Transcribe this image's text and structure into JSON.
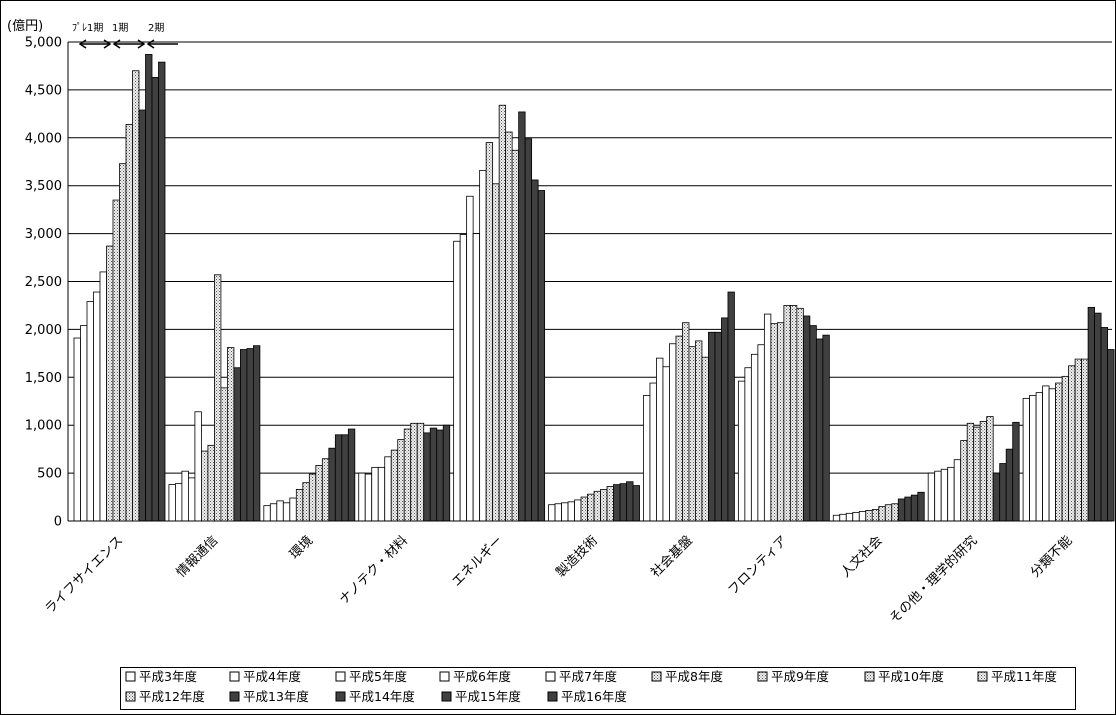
{
  "chart_data": {
    "type": "bar",
    "unit_label": "(億円)",
    "categories": [
      "ライフサイエンス",
      "情報通信",
      "環境",
      "ナノテク・材料",
      "エネルギー",
      "製造技術",
      "社会基盤",
      "フロンティア",
      "人文社会",
      "その他・理学的研究",
      "分類不能"
    ],
    "series": [
      {
        "name": "平成3年度",
        "pattern": "white",
        "values": [
          1910,
          380,
          160,
          500,
          2920,
          170,
          1310,
          1460,
          60,
          500,
          1280
        ]
      },
      {
        "name": "平成4年度",
        "pattern": "white",
        "values": [
          2040,
          390,
          180,
          490,
          2990,
          180,
          1440,
          1600,
          70,
          520,
          1310
        ]
      },
      {
        "name": "平成5年度",
        "pattern": "white",
        "values": [
          2290,
          520,
          210,
          560,
          3390,
          190,
          1700,
          1740,
          80,
          540,
          1340
        ]
      },
      {
        "name": "平成6年度",
        "pattern": "white",
        "values": [
          2390,
          450,
          190,
          560,
          3000,
          200,
          1610,
          1840,
          90,
          560,
          1410
        ]
      },
      {
        "name": "平成7年度",
        "pattern": "white",
        "values": [
          2600,
          1140,
          240,
          670,
          3660,
          220,
          1850,
          2160,
          100,
          640,
          1380
        ]
      },
      {
        "name": "平成8年度",
        "pattern": "dots",
        "values": [
          2870,
          730,
          330,
          740,
          3950,
          250,
          1930,
          2060,
          110,
          840,
          1440
        ]
      },
      {
        "name": "平成9年度",
        "pattern": "dots",
        "values": [
          3350,
          790,
          400,
          850,
          3520,
          280,
          2070,
          2070,
          120,
          1020,
          1510
        ]
      },
      {
        "name": "平成10年度",
        "pattern": "dots",
        "values": [
          3730,
          2570,
          490,
          960,
          4340,
          310,
          1820,
          2250,
          150,
          980,
          1620
        ]
      },
      {
        "name": "平成11年度",
        "pattern": "dots",
        "values": [
          4140,
          1390,
          580,
          1020,
          4060,
          330,
          1880,
          2250,
          170,
          1040,
          1690
        ]
      },
      {
        "name": "平成12年度",
        "pattern": "dots",
        "values": [
          4700,
          1810,
          650,
          1020,
          3870,
          360,
          1710,
          2220,
          180,
          1090,
          1690
        ]
      },
      {
        "name": "平成13年度",
        "pattern": "dark",
        "values": [
          4290,
          1600,
          760,
          920,
          4270,
          380,
          1970,
          2140,
          230,
          500,
          2230
        ]
      },
      {
        "name": "平成14年度",
        "pattern": "dark",
        "values": [
          4870,
          1790,
          900,
          970,
          3990,
          390,
          1970,
          2040,
          250,
          600,
          2170
        ]
      },
      {
        "name": "平成15年度",
        "pattern": "dark",
        "values": [
          4630,
          1800,
          900,
          950,
          3560,
          410,
          2120,
          1900,
          270,
          750,
          2020
        ]
      },
      {
        "name": "平成16年度",
        "pattern": "dark",
        "values": [
          4790,
          1830,
          960,
          1000,
          3450,
          370,
          2390,
          1940,
          300,
          1030,
          1790
        ]
      }
    ],
    "y_ticks": [
      "0",
      "500",
      "1,000",
      "1,500",
      "2,000",
      "2,500",
      "3,000",
      "3,500",
      "4,000",
      "4,500",
      "5,000"
    ],
    "ylim": [
      0,
      5000
    ],
    "grid": true,
    "legend_position": "bottom",
    "period_annotations": [
      {
        "label": "ﾌﾟﾚ1期",
        "arrow": "double"
      },
      {
        "label": "1期",
        "arrow": "double"
      },
      {
        "label": "2期",
        "arrow": "left"
      }
    ]
  },
  "colors": {
    "white_fill": "#ffffff",
    "dot_fill": "#d8d8d8",
    "dark_fill": "#404040",
    "grid": "#000000"
  }
}
